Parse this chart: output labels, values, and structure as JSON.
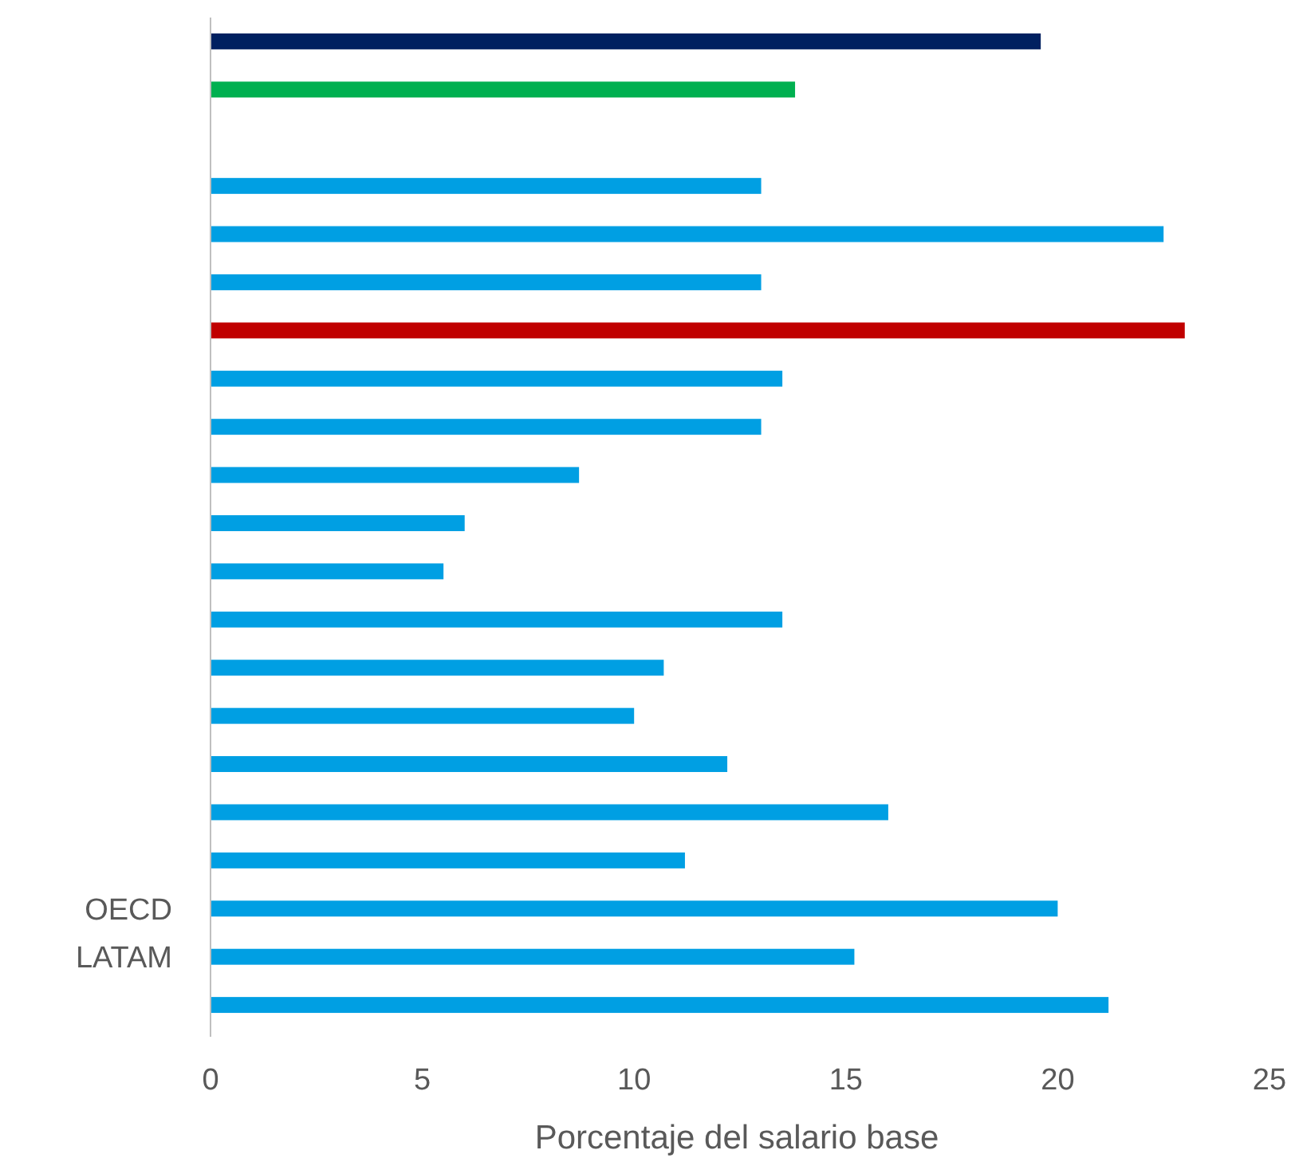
{
  "chart_data": {
    "type": "bar",
    "orientation": "horizontal",
    "xlabel": "Porcentaje del salario base",
    "categories": [
      null,
      null,
      null,
      null,
      null,
      null,
      null,
      null,
      null,
      null,
      null,
      null,
      null,
      null,
      null,
      null,
      null,
      null,
      "OECD",
      "LATAM",
      null
    ],
    "values": [
      19.6,
      13.8,
      null,
      13.0,
      22.5,
      13.0,
      23.0,
      13.5,
      13.0,
      8.7,
      6.0,
      5.5,
      13.5,
      10.7,
      10.0,
      12.2,
      16.0,
      11.2,
      20.0,
      15.2,
      21.2
    ],
    "colors": [
      "#002060",
      "#00b050",
      null,
      "#009fe3",
      "#009fe3",
      "#009fe3",
      "#c00000",
      "#009fe3",
      "#009fe3",
      "#009fe3",
      "#009fe3",
      "#009fe3",
      "#009fe3",
      "#009fe3",
      "#009fe3",
      "#009fe3",
      "#009fe3",
      "#009fe3",
      "#009fe3",
      "#009fe3",
      "#009fe3"
    ],
    "xlim": [
      0,
      25
    ],
    "xticks": [
      0,
      5,
      10,
      15,
      20,
      25
    ],
    "grid": false
  }
}
